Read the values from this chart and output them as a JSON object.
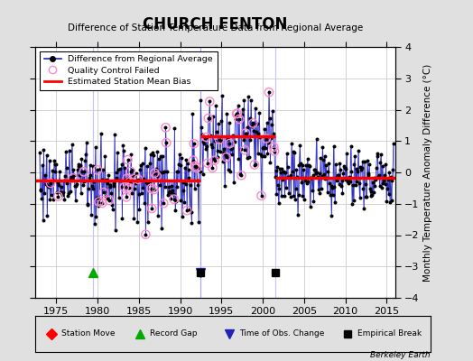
{
  "title": "CHURCH FENTON",
  "subtitle": "Difference of Station Temperature Data from Regional Average",
  "ylabel_right": "Monthly Temperature Anomaly Difference (°C)",
  "xlim": [
    1972.5,
    2016
  ],
  "ylim": [
    -4,
    4
  ],
  "yticks": [
    -4,
    -3,
    -2,
    -1,
    0,
    1,
    2,
    3,
    4
  ],
  "xticks": [
    1975,
    1980,
    1985,
    1990,
    1995,
    2000,
    2005,
    2010,
    2015
  ],
  "fig_bg_color": "#e0e0e0",
  "plot_bg_color": "#ffffff",
  "grid_color": "#cccccc",
  "bias_color": "#ff0000",
  "stem_color": "#6666ff",
  "line_color": "#2222bb",
  "dot_color": "#000000",
  "qc_color": "#ff88cc",
  "bias_segments": [
    {
      "x_start": 1972.5,
      "x_end": 1979.5,
      "y": -0.25
    },
    {
      "x_start": 1979.5,
      "x_end": 1992.5,
      "y": -0.25
    },
    {
      "x_start": 1992.5,
      "x_end": 2001.5,
      "y": 1.15
    },
    {
      "x_start": 2001.5,
      "x_end": 2016.0,
      "y": -0.18
    }
  ],
  "record_gap_x": 1979.5,
  "time_obs_change_x": 1992.5,
  "empirical_break_x1": 1992.5,
  "empirical_break_x2": 2001.5,
  "marker_y": -3.2,
  "watermark": "Berkeley Earth"
}
